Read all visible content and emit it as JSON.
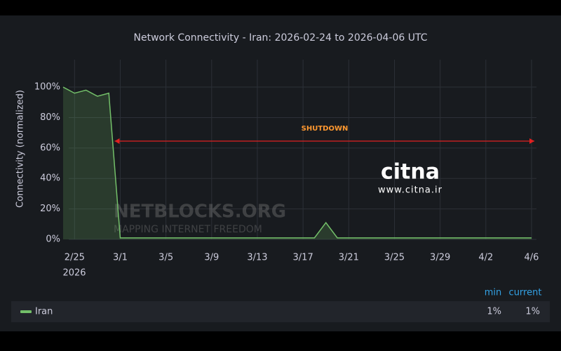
{
  "chart_data": {
    "type": "line",
    "title": "Network Connectivity - Iran: 2026-02-24 to 2026-04-06 UTC",
    "y_label": "Connectivity (normalized)",
    "annotation": "SHUTDOWN",
    "watermarks": [
      "NETBLOCKS.ORG",
      "MAPPING INTERNET FREEDOM",
      "citna",
      "www.citna.ir"
    ],
    "x": [
      "2026-02-24",
      "2026-02-25",
      "2026-02-26",
      "2026-02-27",
      "2026-02-28",
      "2026-03-01",
      "2026-03-03",
      "2026-03-05",
      "2026-03-07",
      "2026-03-09",
      "2026-03-11",
      "2026-03-13",
      "2026-03-15",
      "2026-03-17",
      "2026-03-18",
      "2026-03-19",
      "2026-03-20",
      "2026-03-22",
      "2026-03-24",
      "2026-03-26",
      "2026-03-28",
      "2026-03-30",
      "2026-04-01",
      "2026-04-03",
      "2026-04-06"
    ],
    "series": [
      {
        "name": "Iran",
        "color": "#73bf69",
        "values": [
          100,
          96,
          98,
          94,
          96,
          1,
          1,
          1,
          1,
          1,
          1,
          1,
          1,
          1,
          1,
          11,
          1,
          1,
          1,
          1,
          1,
          1,
          1,
          1,
          1
        ]
      }
    ],
    "xlim": [
      "2026-02-24",
      "2026-04-06"
    ],
    "xticks": [
      {
        "value": "2026-02-25",
        "label": "2/25"
      },
      {
        "value": "2026-03-01",
        "label": "3/1"
      },
      {
        "value": "2026-03-05",
        "label": "3/5"
      },
      {
        "value": "2026-03-09",
        "label": "3/9"
      },
      {
        "value": "2026-03-13",
        "label": "3/13"
      },
      {
        "value": "2026-03-17",
        "label": "3/17"
      },
      {
        "value": "2026-03-21",
        "label": "3/21"
      },
      {
        "value": "2026-03-25",
        "label": "3/25"
      },
      {
        "value": "2026-03-29",
        "label": "3/29"
      },
      {
        "value": "2026-04-02",
        "label": "4/2"
      },
      {
        "value": "2026-04-06",
        "label": "4/6"
      }
    ],
    "x_year_label": "2026",
    "ylim": [
      0,
      118
    ],
    "yticks": [
      {
        "value": 0,
        "label": "0%"
      },
      {
        "value": 20,
        "label": "20%"
      },
      {
        "value": 40,
        "label": "40%"
      },
      {
        "value": 60,
        "label": "60%"
      },
      {
        "value": 80,
        "label": "80%"
      },
      {
        "value": 100,
        "label": "100%"
      }
    ],
    "grid": true,
    "legend": {
      "columns": [
        "min",
        "current"
      ],
      "stats": [
        "1%",
        "1%"
      ]
    }
  }
}
